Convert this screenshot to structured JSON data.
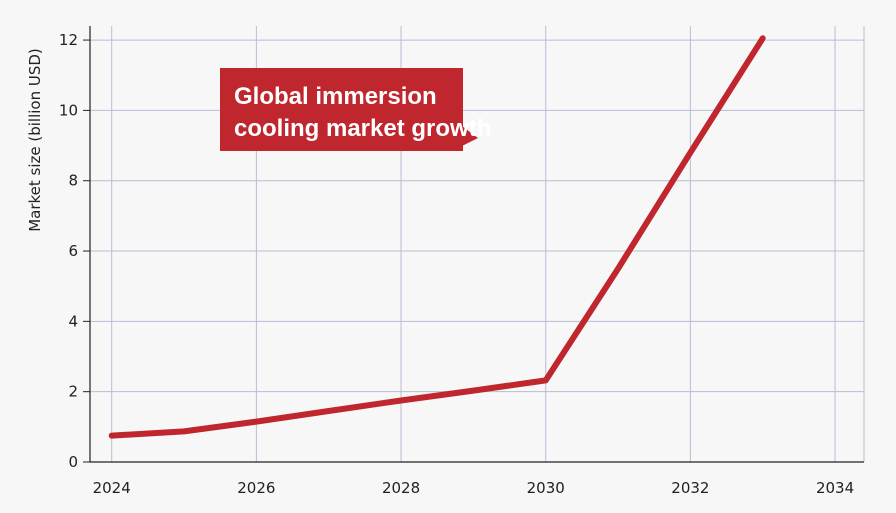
{
  "chart_data": {
    "type": "line",
    "title": "",
    "ylabel": "Market size (billion USD)",
    "xlabel": "",
    "xlim": [
      2023.7,
      2034.4
    ],
    "ylim": [
      0,
      12.4
    ],
    "xticks": [
      2024,
      2026,
      2028,
      2030,
      2032,
      2034
    ],
    "xtick_labels": [
      "2024",
      "2026",
      "2028",
      "2030",
      "2032",
      "2034"
    ],
    "yticks": [
      0,
      2,
      4,
      6,
      8,
      10,
      12
    ],
    "ytick_labels": [
      "0",
      "2",
      "4",
      "6",
      "8",
      "10",
      "12"
    ],
    "grid": true,
    "series": [
      {
        "color": "#c0262d",
        "x": [
          2024,
          2025,
          2026,
          2027,
          2028,
          2029,
          2030,
          2031,
          2032,
          2033
        ],
        "y": [
          0.75,
          0.87,
          1.15,
          1.45,
          1.75,
          2.03,
          2.32,
          5.5,
          8.8,
          12.05
        ]
      }
    ],
    "annotation": {
      "lines": [
        "Global immersion",
        "cooling market growth"
      ],
      "color": "#c0262d"
    }
  }
}
